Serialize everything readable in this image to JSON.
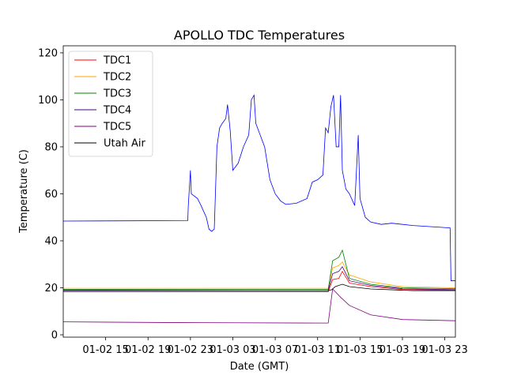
{
  "chart_data": {
    "type": "line",
    "title": "APOLLO TDC Temperatures",
    "xlabel": "Date (GMT)",
    "ylabel": "Temperature (C)",
    "xlim": [
      "2020-01-02 11:00",
      "2020-01-04 00:00"
    ],
    "ylim": [
      -1,
      123
    ],
    "xticks": [
      {
        "t": "2020-01-02 15:00",
        "label": "01-02 15"
      },
      {
        "t": "2020-01-02 19:00",
        "label": "01-02 19"
      },
      {
        "t": "2020-01-02 23:00",
        "label": "01-02 23"
      },
      {
        "t": "2020-01-03 03:00",
        "label": "01-03 03"
      },
      {
        "t": "2020-01-03 07:00",
        "label": "01-03 07"
      },
      {
        "t": "2020-01-03 11:00",
        "label": "01-03 11"
      },
      {
        "t": "2020-01-03 15:00",
        "label": "01-03 15"
      },
      {
        "t": "2020-01-03 19:00",
        "label": "01-03 19"
      },
      {
        "t": "2020-01-03 23:00",
        "label": "01-03 23"
      }
    ],
    "yticks": [
      0,
      20,
      40,
      60,
      80,
      100,
      120
    ],
    "grid": false,
    "legend_position": "top-left",
    "series": [
      {
        "name": "TDC1",
        "color": "#ff0000",
        "points": [
          [
            "2020-01-02 11:00",
            18.3
          ],
          [
            "2020-01-03 12:00",
            18.3
          ],
          [
            "2020-01-03 12:25",
            23.5
          ],
          [
            "2020-01-03 13:00",
            24.0
          ],
          [
            "2020-01-03 13:20",
            27.0
          ],
          [
            "2020-01-03 14:00",
            22.0
          ],
          [
            "2020-01-03 16:00",
            20.5
          ],
          [
            "2020-01-03 19:00",
            19.3
          ],
          [
            "2020-01-04 00:00",
            19.0
          ]
        ]
      },
      {
        "name": "TDC2",
        "color": "#ffa500",
        "points": [
          [
            "2020-01-02 11:00",
            19.8
          ],
          [
            "2020-01-03 12:00",
            19.8
          ],
          [
            "2020-01-03 12:25",
            28.5
          ],
          [
            "2020-01-03 13:00",
            29.5
          ],
          [
            "2020-01-03 13:20",
            31.0
          ],
          [
            "2020-01-03 14:00",
            25.5
          ],
          [
            "2020-01-03 16:00",
            22.5
          ],
          [
            "2020-01-03 19:00",
            20.5
          ],
          [
            "2020-01-04 00:00",
            20.0
          ]
        ]
      },
      {
        "name": "TDC3",
        "color": "#008000",
        "points": [
          [
            "2020-01-02 11:00",
            19.3
          ],
          [
            "2020-01-03 12:00",
            19.3
          ],
          [
            "2020-01-03 12:25",
            31.5
          ],
          [
            "2020-01-03 13:00",
            33.0
          ],
          [
            "2020-01-03 13:20",
            36.0
          ],
          [
            "2020-01-03 14:00",
            24.0
          ],
          [
            "2020-01-03 16:00",
            21.5
          ],
          [
            "2020-01-03 19:00",
            20.0
          ],
          [
            "2020-01-04 00:00",
            19.6
          ]
        ]
      },
      {
        "name": "TDC4",
        "color": "#4b0082",
        "points": [
          [
            "2020-01-02 11:00",
            18.8
          ],
          [
            "2020-01-03 12:00",
            18.8
          ],
          [
            "2020-01-03 12:25",
            26.0
          ],
          [
            "2020-01-03 13:00",
            27.0
          ],
          [
            "2020-01-03 13:20",
            29.0
          ],
          [
            "2020-01-03 14:00",
            23.0
          ],
          [
            "2020-01-03 16:00",
            21.0
          ],
          [
            "2020-01-03 19:00",
            19.6
          ],
          [
            "2020-01-04 00:00",
            19.2
          ]
        ]
      },
      {
        "name": "TDC5",
        "color": "#800080",
        "points": [
          [
            "2020-01-02 11:00",
            5.5
          ],
          [
            "2020-01-02 22:00",
            5.2
          ],
          [
            "2020-01-03 12:00",
            5.0
          ],
          [
            "2020-01-03 12:25",
            19.5
          ],
          [
            "2020-01-03 13:10",
            16.0
          ],
          [
            "2020-01-03 14:00",
            12.5
          ],
          [
            "2020-01-03 16:00",
            8.5
          ],
          [
            "2020-01-03 19:00",
            6.5
          ],
          [
            "2020-01-04 00:00",
            6.0
          ]
        ]
      },
      {
        "name": "Utah Air",
        "color": "#000000",
        "points": [
          [
            "2020-01-02 11:00",
            19.0
          ],
          [
            "2020-01-03 12:00",
            18.8
          ],
          [
            "2020-01-03 12:20",
            19.2
          ],
          [
            "2020-01-03 12:40",
            20.5
          ],
          [
            "2020-01-03 13:20",
            21.5
          ],
          [
            "2020-01-03 14:00",
            20.5
          ],
          [
            "2020-01-03 16:00",
            19.5
          ],
          [
            "2020-01-03 20:00",
            18.8
          ],
          [
            "2020-01-04 00:00",
            18.8
          ]
        ]
      },
      {
        "name": "",
        "color": "#0000ff",
        "points": [
          [
            "2020-01-02 11:00",
            48.4
          ],
          [
            "2020-01-02 22:45",
            48.6
          ],
          [
            "2020-01-02 22:48",
            55.0
          ],
          [
            "2020-01-02 23:00",
            70.0
          ],
          [
            "2020-01-02 23:05",
            60.0
          ],
          [
            "2020-01-02 23:40",
            58.0
          ],
          [
            "2020-01-03 00:00",
            55.0
          ],
          [
            "2020-01-03 00:30",
            50.0
          ],
          [
            "2020-01-03 00:45",
            45.0
          ],
          [
            "2020-01-03 01:00",
            44.0
          ],
          [
            "2020-01-03 01:15",
            45.0
          ],
          [
            "2020-01-03 01:30",
            80.0
          ],
          [
            "2020-01-03 01:45",
            88.0
          ],
          [
            "2020-01-03 02:00",
            90.0
          ],
          [
            "2020-01-03 02:20",
            92.0
          ],
          [
            "2020-01-03 02:30",
            98.0
          ],
          [
            "2020-01-03 02:45",
            87.0
          ],
          [
            "2020-01-03 03:00",
            70.0
          ],
          [
            "2020-01-03 03:30",
            73.0
          ],
          [
            "2020-01-03 04:00",
            80.0
          ],
          [
            "2020-01-03 04:30",
            85.0
          ],
          [
            "2020-01-03 04:45",
            100.0
          ],
          [
            "2020-01-03 05:00",
            102.0
          ],
          [
            "2020-01-03 05:10",
            90.0
          ],
          [
            "2020-01-03 05:30",
            86.0
          ],
          [
            "2020-01-03 06:00",
            80.0
          ],
          [
            "2020-01-03 06:30",
            66.0
          ],
          [
            "2020-01-03 07:00",
            60.0
          ],
          [
            "2020-01-03 07:30",
            57.0
          ],
          [
            "2020-01-03 08:00",
            55.5
          ],
          [
            "2020-01-03 09:00",
            56.0
          ],
          [
            "2020-01-03 10:00",
            58.0
          ],
          [
            "2020-01-03 10:30",
            65.0
          ],
          [
            "2020-01-03 11:00",
            66.0
          ],
          [
            "2020-01-03 11:30",
            68.0
          ],
          [
            "2020-01-03 11:45",
            88.0
          ],
          [
            "2020-01-03 12:00",
            86.0
          ],
          [
            "2020-01-03 12:15",
            97.0
          ],
          [
            "2020-01-03 12:30",
            102.0
          ],
          [
            "2020-01-03 12:45",
            80.0
          ],
          [
            "2020-01-03 13:00",
            80.0
          ],
          [
            "2020-01-03 13:10",
            102.0
          ],
          [
            "2020-01-03 13:20",
            70.0
          ],
          [
            "2020-01-03 13:40",
            62.0
          ],
          [
            "2020-01-03 14:00",
            60.0
          ],
          [
            "2020-01-03 14:30",
            55.0
          ],
          [
            "2020-01-03 14:50",
            85.0
          ],
          [
            "2020-01-03 15:00",
            58.0
          ],
          [
            "2020-01-03 15:30",
            50.0
          ],
          [
            "2020-01-03 16:00",
            48.0
          ],
          [
            "2020-01-03 17:00",
            47.0
          ],
          [
            "2020-01-03 18:00",
            47.5
          ],
          [
            "2020-01-03 20:00",
            46.5
          ],
          [
            "2020-01-03 23:30",
            45.5
          ],
          [
            "2020-01-03 23:35",
            23.0
          ],
          [
            "2020-01-04 00:00",
            23.0
          ]
        ]
      }
    ]
  }
}
